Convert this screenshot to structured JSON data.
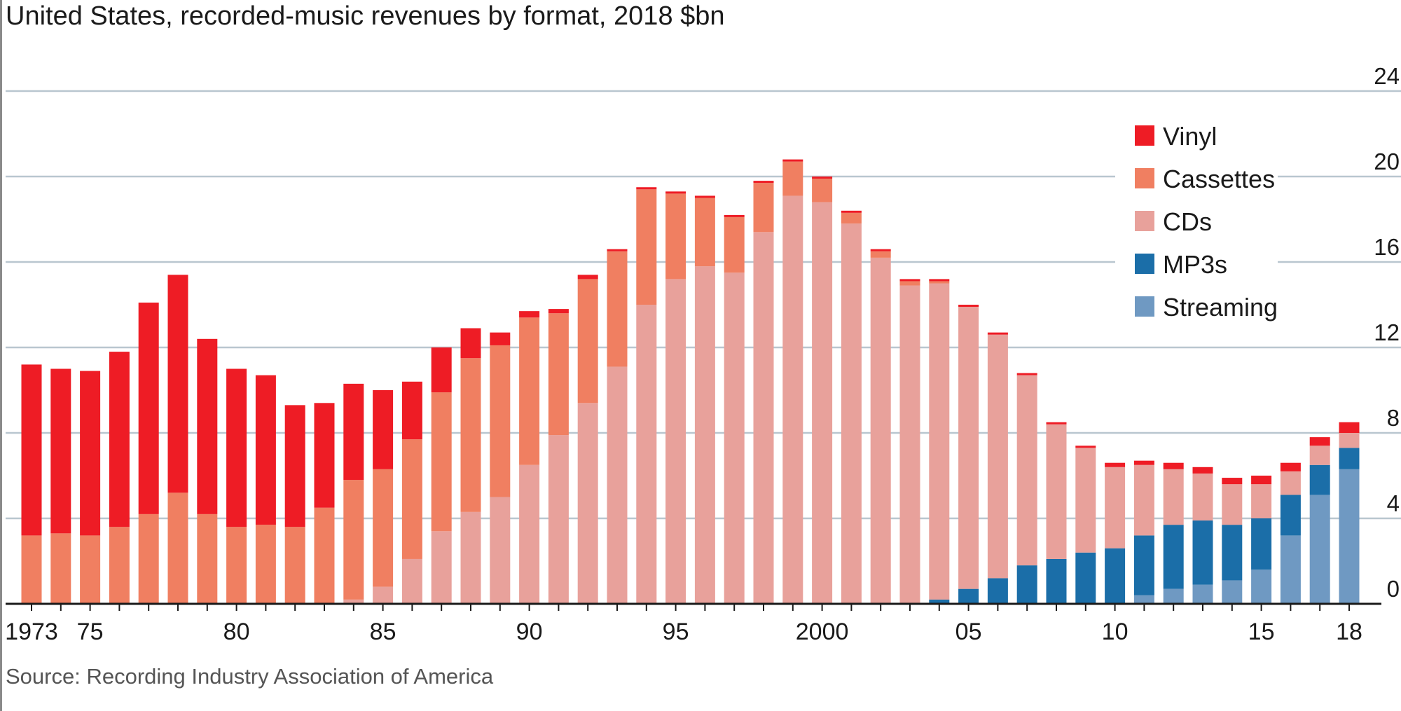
{
  "chart_data": {
    "type": "bar",
    "stacked": true,
    "title": "United States, recorded-music revenues by format, 2018 $bn",
    "source": "Source: Recording Industry Association of America",
    "xlabel": "",
    "ylabel": "",
    "ylim": [
      0,
      24
    ],
    "y_ticks": [
      0,
      4,
      8,
      12,
      16,
      20,
      24
    ],
    "y_axis_position": "right",
    "grid": true,
    "legend_position": "top-right",
    "categories": [
      1973,
      1974,
      1975,
      1976,
      1977,
      1978,
      1979,
      1980,
      1981,
      1982,
      1983,
      1984,
      1985,
      1986,
      1987,
      1988,
      1989,
      1990,
      1991,
      1992,
      1993,
      1994,
      1995,
      1996,
      1997,
      1998,
      1999,
      2000,
      2001,
      2002,
      2003,
      2004,
      2005,
      2006,
      2007,
      2008,
      2009,
      2010,
      2011,
      2012,
      2013,
      2014,
      2015,
      2016,
      2017,
      2018
    ],
    "x_tick_labels": [
      {
        "year": 1973,
        "label": "1973"
      },
      {
        "year": 1975,
        "label": "75"
      },
      {
        "year": 1980,
        "label": "80"
      },
      {
        "year": 1985,
        "label": "85"
      },
      {
        "year": 1990,
        "label": "90"
      },
      {
        "year": 1995,
        "label": "95"
      },
      {
        "year": 2000,
        "label": "2000"
      },
      {
        "year": 2005,
        "label": "05"
      },
      {
        "year": 2010,
        "label": "10"
      },
      {
        "year": 2015,
        "label": "15"
      },
      {
        "year": 2018,
        "label": "18"
      }
    ],
    "series": [
      {
        "name": "Streaming",
        "color": "#6f99c2",
        "values": [
          0,
          0,
          0,
          0,
          0,
          0,
          0,
          0,
          0,
          0,
          0,
          0,
          0,
          0,
          0,
          0,
          0,
          0,
          0,
          0,
          0,
          0,
          0,
          0,
          0,
          0,
          0,
          0,
          0,
          0,
          0,
          0,
          0,
          0,
          0,
          0,
          0,
          0,
          0.4,
          0.7,
          0.9,
          1.1,
          1.6,
          3.2,
          5.1,
          6.3
        ]
      },
      {
        "name": "MP3s",
        "color": "#1b6ea8",
        "values": [
          0,
          0,
          0,
          0,
          0,
          0,
          0,
          0,
          0,
          0,
          0,
          0,
          0,
          0,
          0,
          0,
          0,
          0,
          0,
          0,
          0,
          0,
          0,
          0,
          0,
          0,
          0,
          0,
          0,
          0,
          0,
          0.2,
          0.7,
          1.2,
          1.8,
          2.1,
          2.4,
          2.6,
          2.8,
          3.0,
          3.0,
          2.6,
          2.4,
          1.9,
          1.4,
          1.0
        ]
      },
      {
        "name": "CDs",
        "color": "#e8a19b",
        "values": [
          0,
          0,
          0,
          0,
          0,
          0,
          0,
          0,
          0,
          0,
          0,
          0.2,
          0.8,
          2.1,
          3.4,
          4.3,
          5.0,
          6.5,
          7.9,
          9.4,
          11.1,
          14.0,
          15.2,
          15.8,
          15.5,
          17.4,
          19.1,
          18.8,
          17.8,
          16.2,
          14.9,
          14.8,
          13.2,
          11.4,
          8.9,
          6.3,
          4.9,
          3.8,
          3.3,
          2.6,
          2.2,
          1.9,
          1.6,
          1.1,
          0.9,
          0.7
        ]
      },
      {
        "name": "Cassettes",
        "color": "#f07f61",
        "values": [
          3.2,
          3.3,
          3.2,
          3.6,
          4.2,
          5.2,
          4.2,
          3.6,
          3.7,
          3.6,
          4.5,
          5.6,
          5.5,
          5.6,
          6.5,
          7.2,
          7.1,
          6.9,
          5.7,
          5.8,
          5.4,
          5.4,
          4.0,
          3.2,
          2.6,
          2.3,
          1.6,
          1.1,
          0.5,
          0.3,
          0.2,
          0.1,
          0,
          0,
          0,
          0,
          0,
          0,
          0,
          0,
          0,
          0,
          0,
          0,
          0,
          0
        ]
      },
      {
        "name": "Vinyl",
        "color": "#ee1c25",
        "values": [
          8.0,
          7.7,
          7.7,
          8.2,
          9.9,
          10.2,
          8.2,
          7.4,
          7.0,
          5.7,
          4.9,
          4.5,
          3.7,
          2.7,
          2.1,
          1.4,
          0.6,
          0.3,
          0.2,
          0.2,
          0.1,
          0.1,
          0.1,
          0.1,
          0.1,
          0.1,
          0.1,
          0.1,
          0.1,
          0.1,
          0.1,
          0.1,
          0.1,
          0.1,
          0.1,
          0.1,
          0.1,
          0.2,
          0.2,
          0.3,
          0.3,
          0.3,
          0.4,
          0.4,
          0.4,
          0.5
        ]
      }
    ],
    "legend_entries": [
      {
        "name": "Vinyl",
        "color": "#ee1c25"
      },
      {
        "name": "Cassettes",
        "color": "#f07f61"
      },
      {
        "name": "CDs",
        "color": "#e8a19b"
      },
      {
        "name": "MP3s",
        "color": "#1b6ea8"
      },
      {
        "name": "Streaming",
        "color": "#6f99c2"
      }
    ],
    "colors": {
      "grid": "#b9c6cf",
      "axis": "#1a1a1a",
      "background": "#ffffff"
    }
  }
}
